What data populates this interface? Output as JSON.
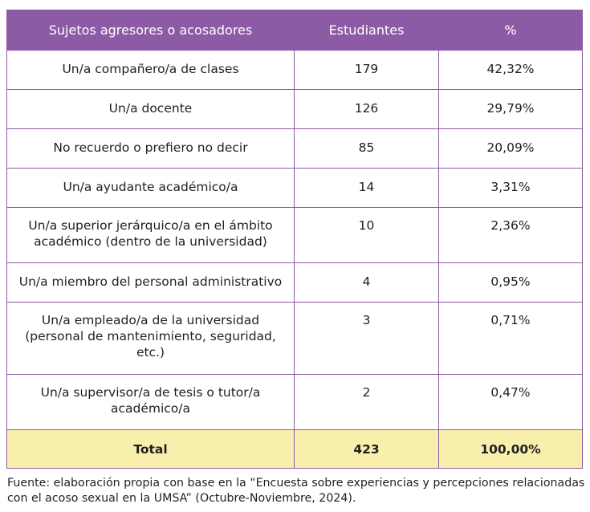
{
  "table": {
    "headers": [
      "Sujetos agresores o acosadores",
      "Estudiantes",
      "%"
    ],
    "rows": [
      {
        "subject": "Un/a compañero/a de clases",
        "students": "179",
        "percent": "42,32%"
      },
      {
        "subject": "Un/a docente",
        "students": "126",
        "percent": "29,79%"
      },
      {
        "subject": "No recuerdo o prefiero no decir",
        "students": "85",
        "percent": "20,09%"
      },
      {
        "subject": "Un/a ayudante académico/a",
        "students": "14",
        "percent": "3,31%"
      },
      {
        "subject": "Un/a superior jerárquico/a en el ámbito académico (dentro de la universidad)",
        "students": "10",
        "percent": "2,36%"
      },
      {
        "subject": "Un/a miembro del personal administrativo",
        "students": "4",
        "percent": "0,95%"
      },
      {
        "subject": "Un/a empleado/a de la universidad (personal de mantenimiento, seguridad, etc.)",
        "students": "3",
        "percent": "0,71%"
      },
      {
        "subject": "Un/a supervisor/a de tesis o tutor/a académico/a",
        "students": "2",
        "percent": "0,47%"
      }
    ],
    "total": {
      "label": "Total",
      "students": "423",
      "percent": "100,00%"
    }
  },
  "footnote": "Fuente: elaboración propia con base en la “Encuesta sobre experiencias y percepciones relacionadas con el acoso sexual en la UMSA” (Octubre-Noviembre, 2024).",
  "colors": {
    "header_bg": "#8d5aa6",
    "border": "#8d5aa6",
    "total_bg": "#f9efac"
  }
}
